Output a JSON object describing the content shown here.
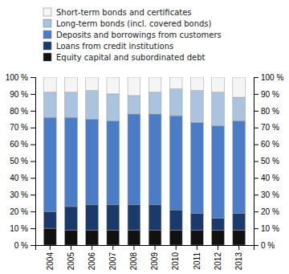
{
  "chart_data": {
    "type": "bar",
    "stacked": true,
    "grid": false,
    "legend": "top",
    "categories": [
      "2004",
      "2005",
      "2006",
      "2007",
      "2008",
      "2009",
      "2010",
      "2011",
      "2012",
      "2013"
    ],
    "series": [
      {
        "name": "Equity capital and subordinated debt",
        "color": "#111111",
        "values": [
          10,
          9,
          9,
          9,
          9,
          9,
          9,
          9,
          9,
          9
        ]
      },
      {
        "name": "Loans from credit institutions",
        "color": "#1a3a6b",
        "values": [
          10,
          14,
          15,
          15,
          15,
          15,
          12,
          10,
          7,
          10
        ]
      },
      {
        "name": "Deposits and borrowings from customers",
        "color": "#4a7cc7",
        "values": [
          56,
          53,
          51,
          50,
          54,
          54,
          56,
          54,
          55,
          55
        ]
      },
      {
        "name": "Long-term bonds (incl. covered bonds)",
        "color": "#aac4df",
        "values": [
          15,
          15,
          17,
          16,
          11,
          13,
          16,
          19,
          20,
          14
        ]
      },
      {
        "name": "Short-term bonds and certificates",
        "color": "#f5f5f5",
        "values": [
          9,
          9,
          8,
          10,
          11,
          9,
          7,
          8,
          9,
          12
        ]
      }
    ],
    "ylim": [
      0,
      100
    ],
    "yticks": [
      {
        "value": 0,
        "label": "0 %"
      },
      {
        "value": 10,
        "label": "10 %"
      },
      {
        "value": 20,
        "label": "20 %"
      },
      {
        "value": 30,
        "label": "30 %"
      },
      {
        "value": 40,
        "label": "40 %"
      },
      {
        "value": 50,
        "label": "50 %"
      },
      {
        "value": 60,
        "label": "60 %"
      },
      {
        "value": 70,
        "label": "70 %"
      },
      {
        "value": 80,
        "label": "80 %"
      },
      {
        "value": 90,
        "label": "90 %"
      },
      {
        "value": 100,
        "label": "100 %"
      }
    ],
    "y2lim": [
      0,
      100
    ],
    "y2ticks": [
      {
        "value": 0,
        "label": "0 %"
      },
      {
        "value": 10,
        "label": "10 %"
      },
      {
        "value": 20,
        "label": "20 %"
      },
      {
        "value": 30,
        "label": "30 %"
      },
      {
        "value": 40,
        "label": "40 %"
      },
      {
        "value": 50,
        "label": "50 %"
      },
      {
        "value": 60,
        "label": "60 %"
      },
      {
        "value": 70,
        "label": "70 %"
      },
      {
        "value": 80,
        "label": "80 %"
      },
      {
        "value": 90,
        "label": "90 %"
      },
      {
        "value": 100,
        "label": "100 %"
      }
    ]
  }
}
